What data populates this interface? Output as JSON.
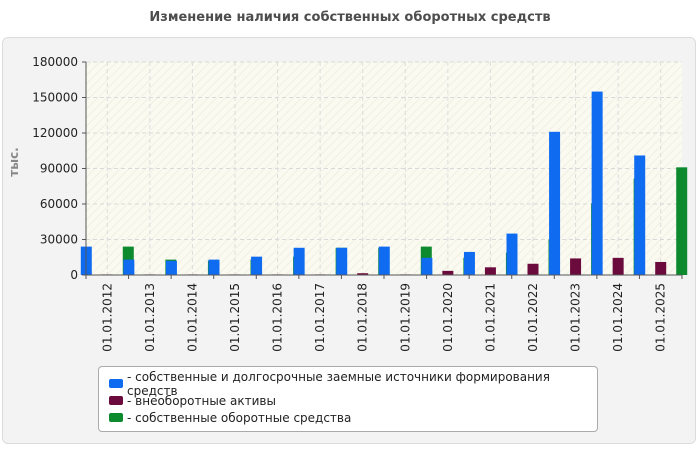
{
  "chart_data": {
    "type": "bar",
    "title": "Изменение наличия собственных оборотных средств",
    "xlabel": "",
    "ylabel": "тыс.",
    "ylim": [
      0,
      180000
    ],
    "yticks": [
      0,
      30000,
      60000,
      90000,
      120000,
      150000,
      180000
    ],
    "ytick_labels": [
      "0",
      "30000",
      "60000",
      "90000",
      "120000",
      "150000",
      "180000"
    ],
    "grid": true,
    "legend_position": "bottom",
    "categories": [
      "01.01.2012",
      "01.01.2013",
      "01.01.2014",
      "01.01.2015",
      "01.01.2016",
      "01.01.2017",
      "01.01.2018",
      "01.01.2019",
      "01.01.2020",
      "01.01.2021",
      "01.01.2022",
      "01.01.2023",
      "01.01.2024",
      "01.01.2025"
    ],
    "series": [
      {
        "name": "- собственные и долгосрочные заемные источники формирования средств",
        "color": "#0f6cf0",
        "values": [
          24000,
          13000,
          12000,
          13000,
          15500,
          23000,
          23000,
          24000,
          14500,
          19500,
          35000,
          121000,
          155000,
          101000
        ]
      },
      {
        "name": "- внеоборотные активы",
        "color": "#6b0a3c",
        "values": [
          500,
          500,
          500,
          500,
          500,
          500,
          1500,
          500,
          3500,
          6500,
          9500,
          14000,
          14500,
          11000
        ]
      },
      {
        "name": "- собственные оборотные средства",
        "color": "#0d8a2e",
        "values": [
          24000,
          13000,
          12000,
          13000,
          15500,
          23000,
          23000,
          24000,
          14500,
          19000,
          30000,
          60500,
          81500,
          91000
        ]
      }
    ]
  }
}
